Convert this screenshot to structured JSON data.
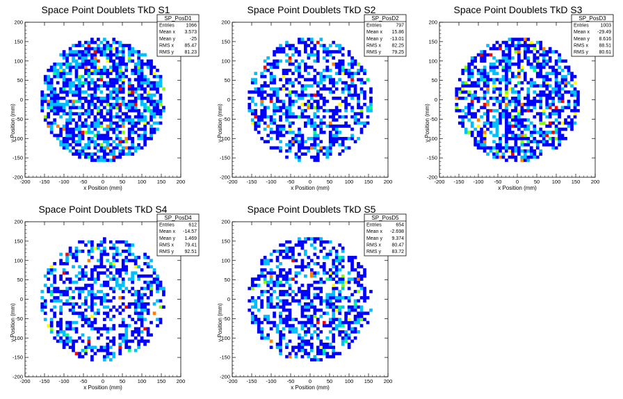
{
  "palette": {
    "low": "#0000ff",
    "mid_low": "#00bfff",
    "mid": "#00ff80",
    "mid_high": "#80ff00",
    "high": "#ffff00",
    "very_high": "#ff8000",
    "max": "#ff0000"
  },
  "chart_data": [
    {
      "type": "heatmap",
      "title": "Space Point Doublets TkD S1",
      "xlabel": "x Position (mm)",
      "ylabel": "y Position (mm)",
      "xlim": [
        -200,
        200
      ],
      "ylim": [
        -200,
        200
      ],
      "xticks": [
        -200,
        -150,
        -100,
        -50,
        0,
        50,
        100,
        150,
        200
      ],
      "yticks": [
        -200,
        -150,
        -100,
        -50,
        0,
        50,
        100,
        150,
        200
      ],
      "stats": {
        "name": "SP_PosD1",
        "rows": [
          {
            "label": "Entries",
            "value": "1066"
          },
          {
            "label": "Mean x",
            "value": "3.573"
          },
          {
            "label": "Mean y",
            "value": "-25"
          },
          {
            "label": "RMS x",
            "value": "85.47"
          },
          {
            "label": "RMS y",
            "value": "81.23"
          }
        ]
      },
      "distribution": {
        "radius_mm": 160,
        "fill_fraction": 0.68,
        "hot_fraction": 0.07,
        "seed": 11
      }
    },
    {
      "type": "heatmap",
      "title": "Space Point Doublets TkD S2",
      "xlabel": "x Position (mm)",
      "ylabel": "y Position (mm)",
      "xlim": [
        -200,
        200
      ],
      "ylim": [
        -200,
        200
      ],
      "xticks": [
        -200,
        -150,
        -100,
        -50,
        0,
        50,
        100,
        150,
        200
      ],
      "yticks": [
        -200,
        -150,
        -100,
        -50,
        0,
        50,
        100,
        150,
        200
      ],
      "stats": {
        "name": "SP_PosD2",
        "rows": [
          {
            "label": "Entries",
            "value": "797"
          },
          {
            "label": "Mean x",
            "value": "15.86"
          },
          {
            "label": "Mean y",
            "value": "-13.01"
          },
          {
            "label": "RMS x",
            "value": "82.25"
          },
          {
            "label": "RMS y",
            "value": "79.25"
          }
        ]
      },
      "distribution": {
        "radius_mm": 160,
        "fill_fraction": 0.52,
        "hot_fraction": 0.05,
        "seed": 23
      }
    },
    {
      "type": "heatmap",
      "title": "Space Point Doublets TkD S3",
      "xlabel": "x Position (mm)",
      "ylabel": "y Position (mm)",
      "xlim": [
        -200,
        200
      ],
      "ylim": [
        -200,
        200
      ],
      "xticks": [
        -200,
        -150,
        -100,
        -50,
        0,
        50,
        100,
        150,
        200
      ],
      "yticks": [
        -200,
        -150,
        -100,
        -50,
        0,
        50,
        100,
        150,
        200
      ],
      "stats": {
        "name": "SP_PosD3",
        "rows": [
          {
            "label": "Entries",
            "value": "1003"
          },
          {
            "label": "Mean x",
            "value": "-29.49"
          },
          {
            "label": "Mean y",
            "value": "8.616"
          },
          {
            "label": "RMS x",
            "value": "88.51"
          },
          {
            "label": "RMS y",
            "value": "80.61"
          }
        ]
      },
      "distribution": {
        "radius_mm": 160,
        "fill_fraction": 0.6,
        "hot_fraction": 0.09,
        "seed": 37
      }
    },
    {
      "type": "heatmap",
      "title": "Space Point Doublets TkD S4",
      "xlabel": "x Position (mm)",
      "ylabel": "y Position (mm)",
      "xlim": [
        -200,
        200
      ],
      "ylim": [
        -200,
        200
      ],
      "xticks": [
        -200,
        -150,
        -100,
        -50,
        0,
        50,
        100,
        150,
        200
      ],
      "yticks": [
        -200,
        -150,
        -100,
        -50,
        0,
        50,
        100,
        150,
        200
      ],
      "stats": {
        "name": "SP_PosD4",
        "rows": [
          {
            "label": "Entries",
            "value": "612"
          },
          {
            "label": "Mean x",
            "value": "-14.57"
          },
          {
            "label": "Mean y",
            "value": "1.469"
          },
          {
            "label": "RMS x",
            "value": "79.41"
          },
          {
            "label": "RMS y",
            "value": "92.51"
          }
        ]
      },
      "distribution": {
        "radius_mm": 160,
        "fill_fraction": 0.45,
        "hot_fraction": 0.04,
        "seed": 41
      }
    },
    {
      "type": "heatmap",
      "title": "Space Point Doublets TkD S5",
      "xlabel": "x Position (mm)",
      "ylabel": "y Position (mm)",
      "xlim": [
        -200,
        200
      ],
      "ylim": [
        -200,
        200
      ],
      "xticks": [
        -200,
        -150,
        -100,
        -50,
        0,
        50,
        100,
        150,
        200
      ],
      "yticks": [
        -200,
        -150,
        -100,
        -50,
        0,
        50,
        100,
        150,
        200
      ],
      "stats": {
        "name": "SP_PosD5",
        "rows": [
          {
            "label": "Entries",
            "value": "654"
          },
          {
            "label": "Mean x",
            "value": "-2.698"
          },
          {
            "label": "Mean y",
            "value": "9.374"
          },
          {
            "label": "RMS x",
            "value": "80.47"
          },
          {
            "label": "RMS y",
            "value": "83.72"
          }
        ]
      },
      "distribution": {
        "radius_mm": 160,
        "fill_fraction": 0.46,
        "hot_fraction": 0.06,
        "seed": 53
      }
    }
  ]
}
